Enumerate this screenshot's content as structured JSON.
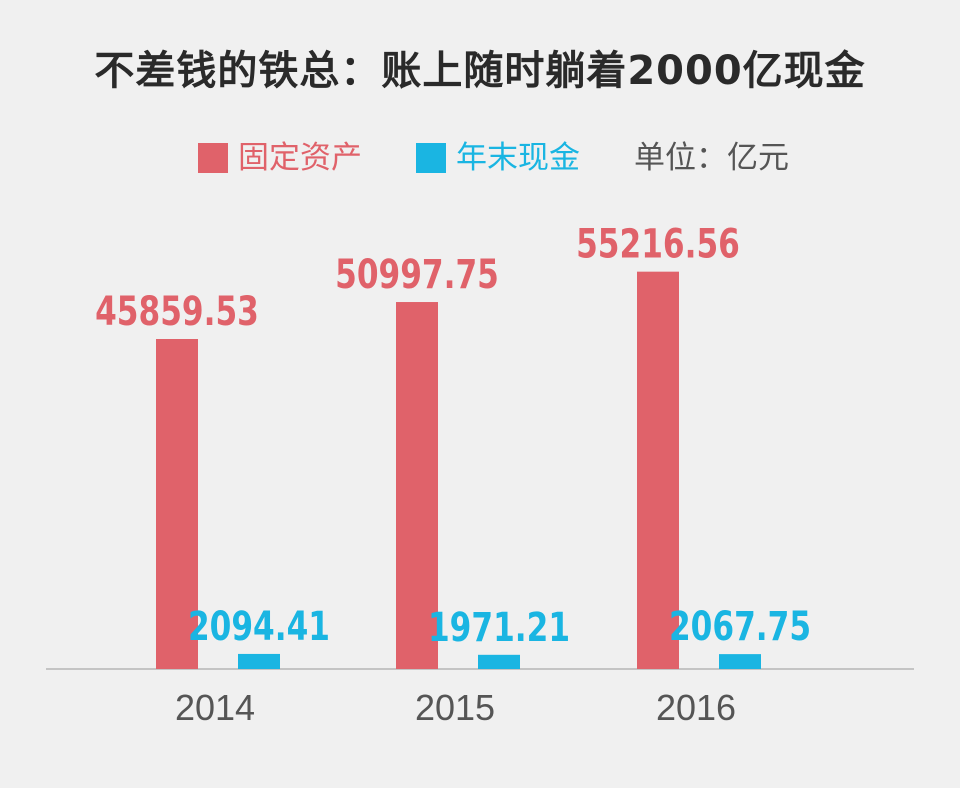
{
  "title": "不差钱的铁总：账上随时躺着2000亿现金",
  "legend": {
    "unit": "单位：亿元"
  },
  "chart_data": {
    "type": "bar",
    "categories": [
      "2014",
      "2015",
      "2016"
    ],
    "series": [
      {
        "name": "固定资产",
        "color": "#e0626a",
        "values": [
          45859.53,
          50997.75,
          55216.56
        ],
        "labels": [
          "45859.53",
          "50997.75",
          "55216.56"
        ]
      },
      {
        "name": "年末现金",
        "color": "#1ab5e2",
        "values": [
          2094.41,
          1971.21,
          2067.75
        ],
        "labels": [
          "2094.41",
          "1971.21",
          "2067.75"
        ]
      }
    ],
    "ylim": [
      0,
      60000
    ],
    "grid": false,
    "legend_position": "top-center"
  }
}
